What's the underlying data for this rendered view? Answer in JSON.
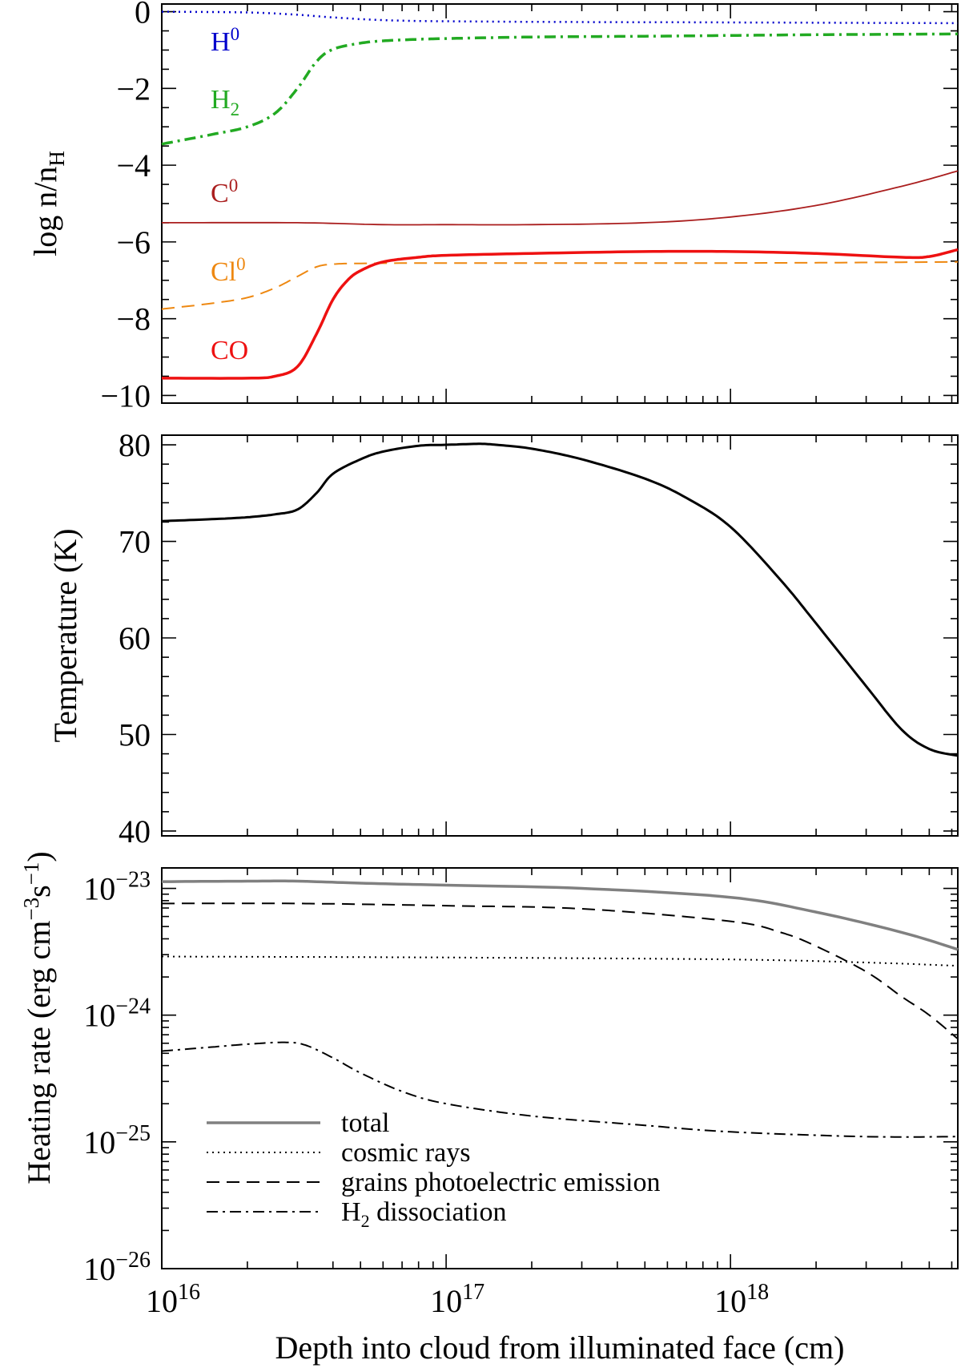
{
  "chart_data": [
    {
      "type": "line",
      "panel": "top",
      "title": "",
      "xlabel": "",
      "ylabel": "log n/n",
      "ylabel_subscript": "H",
      "xscale": "log",
      "xlim": [
        1e+16,
        6.3e+18
      ],
      "ylim": [
        -10.2,
        0.2
      ],
      "yticks": [
        0,
        -2,
        -4,
        -6,
        -8,
        -10
      ],
      "ytick_labels": [
        "0",
        "−2",
        "−4",
        "−6",
        "−8",
        "−10"
      ],
      "series": [
        {
          "name": "H0",
          "label": "H",
          "label_sup": "0",
          "color": "#0000cc",
          "style": "dotted",
          "width": 2.5,
          "x": [
            1e+16,
            2e+16,
            3e+16,
            4e+16,
            6e+16,
            1e+17,
            3e+17,
            1e+18,
            6.3e+18
          ],
          "y": [
            0,
            -0.02,
            -0.08,
            -0.15,
            -0.22,
            -0.25,
            -0.27,
            -0.28,
            -0.3
          ]
        },
        {
          "name": "H2",
          "label": "H",
          "label_sub": "2",
          "color": "#22aa22",
          "style": "dashdot",
          "width": 3.5,
          "x": [
            1e+16,
            1.5e+16,
            2e+16,
            2.5e+16,
            3e+16,
            3.5e+16,
            4e+16,
            5e+16,
            6e+16,
            8e+16,
            1e+17,
            2e+17,
            5e+17,
            1e+18,
            2e+18,
            6.3e+18
          ],
          "y": [
            -3.45,
            -3.2,
            -3.0,
            -2.65,
            -2.0,
            -1.3,
            -0.98,
            -0.82,
            -0.76,
            -0.72,
            -0.7,
            -0.66,
            -0.64,
            -0.62,
            -0.6,
            -0.58
          ]
        },
        {
          "name": "C0",
          "label": "C",
          "label_sup": "0",
          "color": "#aa1e1e",
          "style": "solid",
          "width": 1.8,
          "x": [
            1e+16,
            3e+16,
            6e+16,
            1e+17,
            2e+17,
            5e+17,
            1e+18,
            2e+18,
            4e+18,
            6.3e+18
          ],
          "y": [
            -5.5,
            -5.5,
            -5.55,
            -5.55,
            -5.55,
            -5.5,
            -5.35,
            -5.05,
            -4.55,
            -4.15
          ]
        },
        {
          "name": "Cl0",
          "label": "Cl",
          "label_sup": "0",
          "color": "#ee8811",
          "style": "dashed",
          "width": 2,
          "x": [
            1e+16,
            1.5e+16,
            2e+16,
            2.5e+16,
            3e+16,
            3.5e+16,
            4e+16,
            5e+16,
            1e+17,
            1e+18,
            6.3e+18
          ],
          "y": [
            -7.75,
            -7.6,
            -7.45,
            -7.2,
            -6.9,
            -6.65,
            -6.58,
            -6.56,
            -6.55,
            -6.55,
            -6.52
          ]
        },
        {
          "name": "CO",
          "label": "CO",
          "color": "#ee1111",
          "style": "solid",
          "width": 3.5,
          "x": [
            1e+16,
            2e+16,
            2.5e+16,
            3e+16,
            3.5e+16,
            4e+16,
            4.5e+16,
            5e+16,
            6e+16,
            8e+16,
            1e+17,
            2e+17,
            5e+17,
            1e+18,
            2e+18,
            4e+18,
            5e+18,
            6.3e+18
          ],
          "y": [
            -9.55,
            -9.55,
            -9.5,
            -9.25,
            -8.4,
            -7.5,
            -7.0,
            -6.75,
            -6.52,
            -6.4,
            -6.35,
            -6.3,
            -6.25,
            -6.25,
            -6.3,
            -6.4,
            -6.38,
            -6.2
          ]
        }
      ]
    },
    {
      "type": "line",
      "panel": "middle",
      "title": "",
      "xlabel": "",
      "ylabel": "Temperature (K)",
      "xscale": "log",
      "xlim": [
        1e+16,
        6.3e+18
      ],
      "ylim": [
        39.5,
        81
      ],
      "yticks": [
        80,
        70,
        60,
        50,
        40
      ],
      "ytick_labels": [
        "80",
        "70",
        "60",
        "50",
        "40"
      ],
      "series": [
        {
          "name": "Temperature",
          "color": "#000000",
          "style": "solid",
          "width": 3,
          "x": [
            1e+16,
            1.5e+16,
            2e+16,
            2.5e+16,
            3e+16,
            3.5e+16,
            4e+16,
            5e+16,
            6e+16,
            8e+16,
            1e+17,
            1.3e+17,
            1.5e+17,
            2e+17,
            3e+17,
            5e+17,
            7e+17,
            1e+18,
            1.5e+18,
            2e+18,
            3e+18,
            4e+18,
            5e+18,
            6.3e+18
          ],
          "y": [
            72.1,
            72.3,
            72.5,
            72.8,
            73.3,
            75,
            77,
            78.5,
            79.3,
            79.9,
            80.0,
            80.1,
            80.0,
            79.6,
            78.5,
            76.5,
            74.5,
            71.5,
            66,
            61.5,
            55,
            50.5,
            48.5,
            47.8
          ]
        }
      ]
    },
    {
      "type": "line",
      "panel": "bottom",
      "title": "",
      "xlabel": "Depth into cloud from illuminated face (cm)",
      "ylabel": "Heating rate (erg cm",
      "ylabel_sup1": "−3",
      "ylabel_mid": "s",
      "ylabel_sup2": "−1",
      "ylabel_end": ")",
      "xscale": "log",
      "yscale": "log",
      "xlim": [
        1e+16,
        6.3e+18
      ],
      "ylim": [
        1e-26,
        1.45e-23
      ],
      "yticks": [
        -23,
        -24,
        -25,
        -26
      ],
      "ytick_labels": [
        "10",
        "10",
        "10",
        "10"
      ],
      "ytick_exps": [
        "−23",
        "−24",
        "−25",
        "−26"
      ],
      "xticks": [
        16,
        17,
        18
      ],
      "xtick_labels": [
        "10",
        "10",
        "10"
      ],
      "xtick_exps": [
        "16",
        "17",
        "18"
      ],
      "legend_position": "lower-left",
      "series": [
        {
          "name": "total",
          "label": "total",
          "color": "#808080",
          "style": "solid",
          "width": 3.5,
          "x": [
            1e+16,
            2e+16,
            3e+16,
            5e+16,
            1e+17,
            3e+17,
            1e+18,
            2e+18,
            4e+18,
            6.3e+18
          ],
          "y": [
            1.13e-23,
            1.14e-23,
            1.14e-23,
            1.1e-23,
            1.06e-23,
            1e-23,
            8.5e-24,
            6.5e-24,
            4.5e-24,
            3.3e-24
          ]
        },
        {
          "name": "cosmic rays",
          "label": "cosmic rays",
          "color": "#000000",
          "style": "dotted",
          "width": 2,
          "x": [
            1e+16,
            1e+17,
            1e+18,
            3e+18,
            6.3e+18
          ],
          "y": [
            2.9e-24,
            2.85e-24,
            2.75e-24,
            2.6e-24,
            2.45e-24
          ]
        },
        {
          "name": "grains photoelectric emission",
          "label": "grains photoelectric emission",
          "color": "#000000",
          "style": "dashed",
          "width": 2,
          "x": [
            1e+16,
            3e+16,
            1e+17,
            3e+17,
            1e+18,
            1.5e+18,
            2e+18,
            3e+18,
            4e+18,
            5e+18,
            6.3e+18
          ],
          "y": [
            7.6e-24,
            7.6e-24,
            7.3e-24,
            6.9e-24,
            5.5e-24,
            4.5e-24,
            3.5e-24,
            2.2e-24,
            1.4e-24,
            1e-24,
            6.5e-25
          ]
        },
        {
          "name": "H2 dissociation",
          "label": "H",
          "label_sub": "2",
          "label_rest": " dissociation",
          "color": "#000000",
          "style": "dashdot",
          "width": 2,
          "x": [
            1e+16,
            1.5e+16,
            2e+16,
            2.7e+16,
            3.2e+16,
            4e+16,
            5e+16,
            7e+16,
            1e+17,
            2e+17,
            5e+17,
            1e+18,
            3e+18,
            6.3e+18
          ],
          "y": [
            5.2e-25,
            5.6e-25,
            5.9e-25,
            6.1e-25,
            5.8e-25,
            4.6e-25,
            3.5e-25,
            2.5e-25,
            2e-25,
            1.6e-25,
            1.35e-25,
            1.2e-25,
            1.1e-25,
            1.1e-25
          ]
        }
      ]
    }
  ]
}
